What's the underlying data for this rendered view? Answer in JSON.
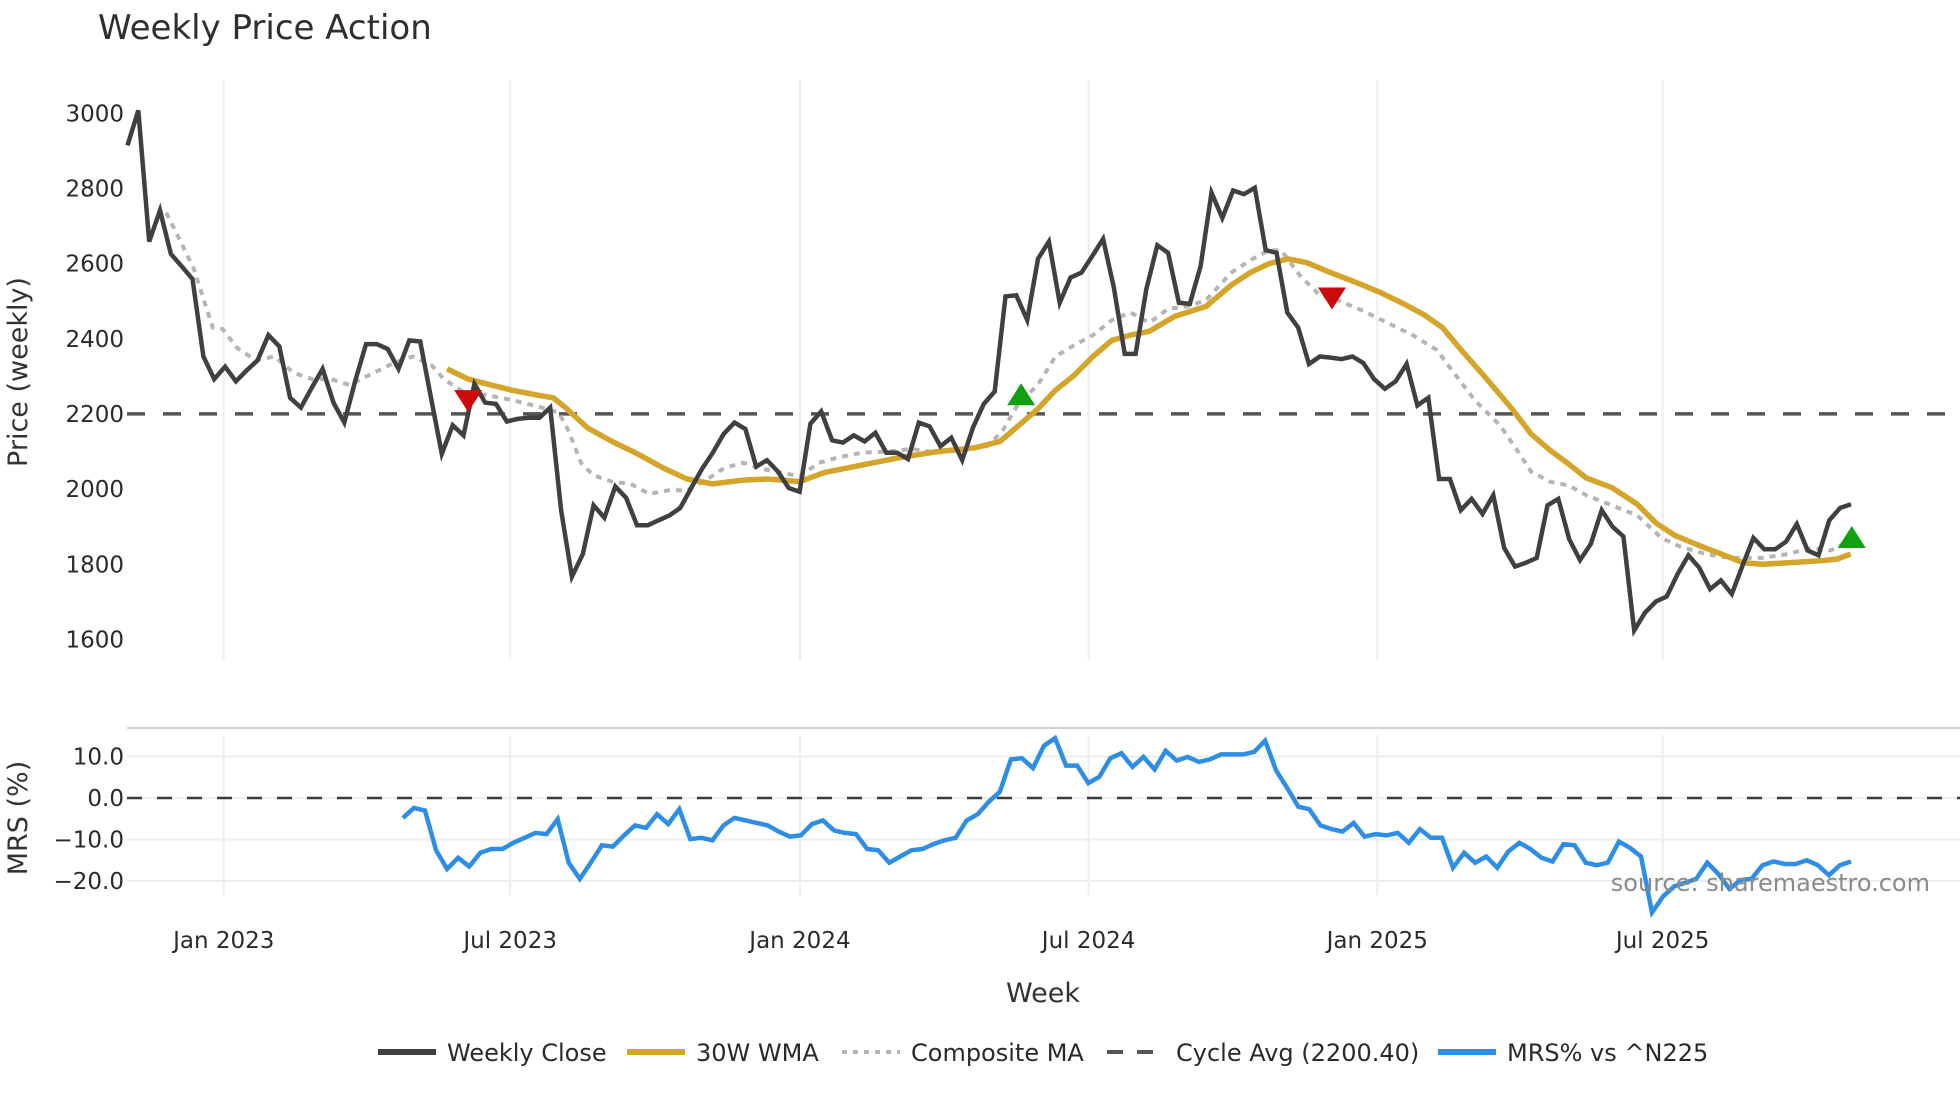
{
  "title": "Weekly Price Action",
  "source_text": "source: sharemaestro.com",
  "colors": {
    "close": "#404040",
    "wma": "#d4a52a",
    "composite": "#b5b5b5",
    "cycle": "#555555",
    "mrs": "#2e8ee6",
    "sell": "#cc0a0a",
    "buy": "#10a010",
    "grid": "#eceef1"
  },
  "chart_data": [
    {
      "type": "line",
      "title": "Weekly Price Action",
      "xlabel": "Week",
      "ylabel": "Price (weekly)",
      "yticks": [
        1600,
        1800,
        2000,
        2200,
        2400,
        2600,
        2800,
        3000
      ],
      "ylim": [
        1550,
        3050
      ],
      "xtick_labels": [
        "Jan 2023",
        "Jul 2023",
        "Jan 2024",
        "Jul 2024",
        "Jan 2025",
        "Jul 2025"
      ],
      "xtick_weeks": [
        8.7,
        34.6,
        60.8,
        86.9,
        113.0,
        138.8
      ],
      "cycle_avg": 2200.4,
      "series": [
        {
          "name": "Weekly Close",
          "values": [
            2915,
            3008,
            2659,
            2742,
            2626,
            2593,
            2559,
            2353,
            2293,
            2326,
            2287,
            2316,
            2343,
            2410,
            2380,
            2243,
            2217,
            2270,
            2320,
            2230,
            2177,
            2287,
            2386,
            2386,
            2373,
            2320,
            2396,
            2393,
            2243,
            2094,
            2170,
            2143,
            2280,
            2230,
            2227,
            2180,
            2187,
            2190,
            2190,
            2217,
            1944,
            1767,
            1827,
            1957,
            1924,
            2007,
            1977,
            1904,
            1904,
            1917,
            1930,
            1950,
            2003,
            2054,
            2097,
            2147,
            2177,
            2160,
            2060,
            2077,
            2047,
            2003,
            1993,
            2174,
            2207,
            2130,
            2124,
            2143,
            2127,
            2150,
            2097,
            2097,
            2080,
            2177,
            2167,
            2114,
            2137,
            2077,
            2164,
            2227,
            2260,
            2513,
            2516,
            2450,
            2613,
            2659,
            2496,
            2563,
            2576,
            2620,
            2666,
            2536,
            2360,
            2360,
            2533,
            2649,
            2629,
            2496,
            2493,
            2593,
            2789,
            2722,
            2795,
            2785,
            2802,
            2636,
            2629,
            2470,
            2430,
            2333,
            2353,
            2350,
            2346,
            2353,
            2336,
            2293,
            2267,
            2287,
            2333,
            2223,
            2243,
            2027,
            2027,
            1944,
            1974,
            1934,
            1984,
            1844,
            1794,
            1804,
            1817,
            1957,
            1974,
            1867,
            1811,
            1854,
            1944,
            1900,
            1874,
            1624,
            1671,
            1701,
            1714,
            1774,
            1824,
            1791,
            1734,
            1757,
            1721,
            1797,
            1870,
            1840,
            1840,
            1860,
            1907,
            1837,
            1824,
            1917,
            1950,
            1960
          ]
        },
        {
          "name": "30W WMA",
          "points": [
            [
              28.9,
              2320
            ],
            [
              30.8,
              2293
            ],
            [
              32.5,
              2280
            ],
            [
              34.8,
              2263
            ],
            [
              37.1,
              2250
            ],
            [
              38.5,
              2243
            ],
            [
              39.6,
              2217
            ],
            [
              41.6,
              2163
            ],
            [
              43.8,
              2127
            ],
            [
              46.1,
              2094
            ],
            [
              48.4,
              2057
            ],
            [
              50.6,
              2027
            ],
            [
              52.9,
              2014
            ],
            [
              55.7,
              2024
            ],
            [
              57.9,
              2027
            ],
            [
              60.8,
              2020
            ],
            [
              63.0,
              2044
            ],
            [
              66.4,
              2064
            ],
            [
              69.8,
              2084
            ],
            [
              73.2,
              2100
            ],
            [
              76.6,
              2110
            ],
            [
              78.9,
              2127
            ],
            [
              80.6,
              2170
            ],
            [
              82.3,
              2213
            ],
            [
              83.9,
              2263
            ],
            [
              85.6,
              2303
            ],
            [
              87.3,
              2353
            ],
            [
              89.0,
              2396
            ],
            [
              90.7,
              2410
            ],
            [
              92.4,
              2420
            ],
            [
              94.7,
              2460
            ],
            [
              97.5,
              2486
            ],
            [
              99.8,
              2543
            ],
            [
              101.5,
              2576
            ],
            [
              103.2,
              2600
            ],
            [
              104.9,
              2613
            ],
            [
              106.6,
              2603
            ],
            [
              108.8,
              2576
            ],
            [
              111.1,
              2550
            ],
            [
              113.3,
              2523
            ],
            [
              115.6,
              2490
            ],
            [
              117.3,
              2463
            ],
            [
              118.9,
              2430
            ],
            [
              120.6,
              2370
            ],
            [
              122.9,
              2293
            ],
            [
              125.2,
              2213
            ],
            [
              126.9,
              2147
            ],
            [
              128.6,
              2104
            ],
            [
              130.3,
              2067
            ],
            [
              131.9,
              2030
            ],
            [
              134.2,
              2004
            ],
            [
              136.5,
              1960
            ],
            [
              138.2,
              1910
            ],
            [
              139.9,
              1877
            ],
            [
              142.1,
              1850
            ],
            [
              144.4,
              1824
            ],
            [
              146.1,
              1804
            ],
            [
              147.8,
              1800
            ],
            [
              150.1,
              1804
            ],
            [
              151.7,
              1807
            ],
            [
              153.4,
              1810
            ],
            [
              154.6,
              1814
            ],
            [
              155.8,
              1827
            ]
          ]
        },
        {
          "name": "Composite MA",
          "points": [
            [
              3.5,
              2736
            ],
            [
              4.9,
              2653
            ],
            [
              6.0,
              2586
            ],
            [
              7.7,
              2430
            ],
            [
              8.6,
              2426
            ],
            [
              9.9,
              2376
            ],
            [
              11.6,
              2343
            ],
            [
              13.3,
              2353
            ],
            [
              15.0,
              2310
            ],
            [
              16.7,
              2293
            ],
            [
              18.4,
              2293
            ],
            [
              20.1,
              2277
            ],
            [
              21.8,
              2303
            ],
            [
              24.1,
              2336
            ],
            [
              25.8,
              2353
            ],
            [
              27.5,
              2330
            ],
            [
              28.6,
              2293
            ],
            [
              30.3,
              2260
            ],
            [
              32.5,
              2250
            ],
            [
              34.8,
              2237
            ],
            [
              37.1,
              2220
            ],
            [
              39.0,
              2204
            ],
            [
              39.9,
              2154
            ],
            [
              41.0,
              2070
            ],
            [
              42.1,
              2037
            ],
            [
              43.8,
              2020
            ],
            [
              45.5,
              2014
            ],
            [
              47.2,
              1987
            ],
            [
              48.9,
              1997
            ],
            [
              50.6,
              1997
            ],
            [
              52.3,
              2024
            ],
            [
              54.0,
              2057
            ],
            [
              55.7,
              2070
            ],
            [
              57.4,
              2054
            ],
            [
              59.1,
              2044
            ],
            [
              60.8,
              2034
            ],
            [
              62.5,
              2070
            ],
            [
              64.2,
              2084
            ],
            [
              66.4,
              2097
            ],
            [
              68.7,
              2100
            ],
            [
              70.9,
              2107
            ],
            [
              73.2,
              2097
            ],
            [
              75.5,
              2104
            ],
            [
              77.7,
              2114
            ],
            [
              79.1,
              2154
            ],
            [
              80.6,
              2230
            ],
            [
              82.3,
              2277
            ],
            [
              83.9,
              2353
            ],
            [
              85.6,
              2383
            ],
            [
              87.3,
              2410
            ],
            [
              89.0,
              2450
            ],
            [
              90.7,
              2470
            ],
            [
              92.4,
              2443
            ],
            [
              94.1,
              2480
            ],
            [
              95.8,
              2486
            ],
            [
              97.5,
              2503
            ],
            [
              99.8,
              2576
            ],
            [
              101.5,
              2609
            ],
            [
              103.2,
              2636
            ],
            [
              104.3,
              2636
            ],
            [
              106.0,
              2569
            ],
            [
              107.7,
              2519
            ],
            [
              109.4,
              2503
            ],
            [
              111.6,
              2476
            ],
            [
              113.9,
              2443
            ],
            [
              116.2,
              2410
            ],
            [
              118.4,
              2370
            ],
            [
              120.1,
              2303
            ],
            [
              121.8,
              2237
            ],
            [
              124.1,
              2170
            ],
            [
              125.8,
              2097
            ],
            [
              126.9,
              2047
            ],
            [
              128.6,
              2020
            ],
            [
              130.3,
              2010
            ],
            [
              131.9,
              1984
            ],
            [
              134.2,
              1957
            ],
            [
              136.5,
              1930
            ],
            [
              138.7,
              1870
            ],
            [
              140.4,
              1847
            ],
            [
              142.7,
              1827
            ],
            [
              144.9,
              1817
            ],
            [
              147.8,
              1817
            ],
            [
              150.1,
              1827
            ],
            [
              152.3,
              1844
            ],
            [
              154.0,
              1837
            ],
            [
              155.8,
              1864
            ]
          ]
        },
        {
          "name": "Cycle Avg (2200.40)",
          "value": 2200.4
        }
      ],
      "markers": [
        {
          "type": "sell",
          "week": 30.8,
          "value": 2237
        },
        {
          "type": "buy",
          "week": 80.8,
          "value": 2250
        },
        {
          "type": "sell",
          "week": 108.9,
          "value": 2510
        },
        {
          "type": "buy",
          "week": 155.9,
          "value": 1870
        }
      ]
    },
    {
      "type": "line",
      "ylabel": "MRS (%)",
      "yticks": [
        -20.0,
        -10.0,
        0.0,
        10.0
      ],
      "ytick_labels": [
        "−20.0",
        "−10.0",
        "0.0",
        "10.0"
      ],
      "ylim": [
        -30,
        17
      ],
      "zero_line": 0.0,
      "series": [
        {
          "name": "MRS% vs ^N225",
          "start_week": 24.9,
          "values": [
            -4.8,
            -2.4,
            -3.0,
            -12.6,
            -17.1,
            -14.4,
            -16.5,
            -13.2,
            -12.3,
            -12.3,
            -10.8,
            -9.6,
            -8.4,
            -8.7,
            -5.1,
            -15.6,
            -19.5,
            -15.6,
            -11.4,
            -11.7,
            -9.0,
            -6.6,
            -7.2,
            -3.9,
            -6.3,
            -2.7,
            -9.9,
            -9.6,
            -10.2,
            -6.6,
            -4.8,
            -5.4,
            -6.0,
            -6.6,
            -8.1,
            -9.3,
            -9.0,
            -6.3,
            -5.4,
            -7.8,
            -8.4,
            -8.7,
            -12.3,
            -12.6,
            -15.6,
            -14.1,
            -12.6,
            -12.3,
            -11.1,
            -10.2,
            -9.6,
            -5.4,
            -3.9,
            -0.9,
            1.5,
            9.3,
            9.6,
            7.2,
            12.6,
            14.4,
            7.8,
            7.8,
            3.6,
            5.1,
            9.6,
            10.8,
            7.5,
            9.9,
            6.9,
            11.4,
            9.0,
            9.9,
            8.7,
            9.3,
            10.5,
            10.5,
            10.5,
            11.1,
            13.8,
            6.6,
            2.4,
            -2.1,
            -2.7,
            -6.6,
            -7.5,
            -8.1,
            -6.0,
            -9.3,
            -8.7,
            -9.0,
            -8.4,
            -10.8,
            -7.5,
            -9.6,
            -9.6,
            -16.8,
            -13.2,
            -15.6,
            -14.1,
            -16.8,
            -12.9,
            -10.8,
            -12.3,
            -14.4,
            -15.3,
            -11.1,
            -11.4,
            -15.6,
            -16.2,
            -15.6,
            -10.5,
            -12.0,
            -14.1,
            -27.6,
            -23.7,
            -21.3,
            -20.4,
            -19.5,
            -15.6,
            -18.3,
            -21.9,
            -19.8,
            -19.5,
            -16.2,
            -15.3,
            -15.9,
            -15.9,
            -15.0,
            -16.2,
            -18.6,
            -16.2,
            -15.3
          ]
        }
      ]
    }
  ],
  "legend": [
    {
      "label": "Weekly Close",
      "style": "solid",
      "color_key": "close"
    },
    {
      "label": "30W WMA",
      "style": "solid",
      "color_key": "wma"
    },
    {
      "label": "Composite MA",
      "style": "dotted",
      "color_key": "composite"
    },
    {
      "label": "Cycle Avg (2200.40)",
      "style": "dashed",
      "color_key": "cycle"
    },
    {
      "label": "MRS% vs ^N225",
      "style": "solid",
      "color_key": "mrs"
    }
  ]
}
